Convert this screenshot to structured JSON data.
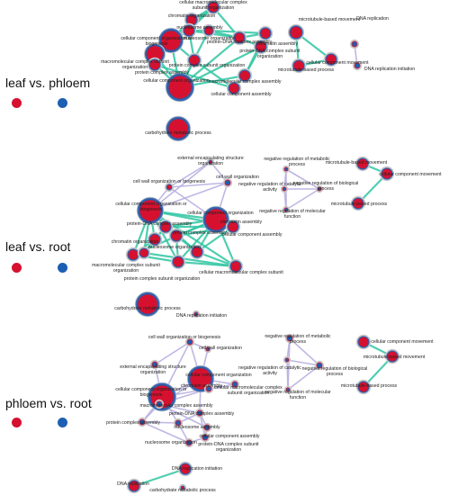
{
  "colors": {
    "first": "#d6112f",
    "second": "#1c5fb3",
    "edge_similar": "#2fc6a2",
    "edge_weak": "#b8afe0",
    "node_halo": "#c9c9c9"
  },
  "panels": [
    {
      "label": "leaf vs. phloem",
      "nodes": [
        {
          "text": "cellular macromolecular complex subunit organization",
          "kind": "red"
        },
        {
          "text": "chromatin organization",
          "kind": "red"
        },
        {
          "text": "nucleosome assembly",
          "kind": "red"
        },
        {
          "text": "nucleosome organization",
          "kind": "red"
        },
        {
          "text": "protein-DNA complex assembly",
          "kind": "red"
        },
        {
          "text": "cellular component organization or biogenesis",
          "kind": "red"
        },
        {
          "text": "chromatin assembly",
          "kind": "red"
        },
        {
          "text": "protein-DNA complex subunit organization",
          "kind": "red"
        },
        {
          "text": "macromolecular complex subunit organization",
          "kind": "red"
        },
        {
          "text": "protein complex subunit organization",
          "kind": "red"
        },
        {
          "text": "cellular component organization",
          "kind": "red"
        },
        {
          "text": "macromolecular complex assembly",
          "kind": "red"
        },
        {
          "text": "protein complex assembly",
          "kind": "red"
        },
        {
          "text": "cellular component assembly",
          "kind": "red"
        },
        {
          "text": "microtubule-based movement",
          "kind": "red"
        },
        {
          "text": "cellular component movement",
          "kind": "red"
        },
        {
          "text": "microtubule-based process",
          "kind": "red"
        },
        {
          "text": "DNA replication",
          "kind": "blue"
        },
        {
          "text": "DNA replication initiation",
          "kind": "blue"
        },
        {
          "text": "carbohydrate metabolic process",
          "kind": "red"
        }
      ]
    },
    {
      "label": "leaf vs. root",
      "nodes": [
        {
          "text": "external encapsulating structure organization",
          "kind": "red"
        },
        {
          "text": "cell wall organization",
          "kind": "blue"
        },
        {
          "text": "cell wall organization or biogenesis",
          "kind": "red"
        },
        {
          "text": "cellular component organization or biogenesis",
          "kind": "red"
        },
        {
          "text": "cellular component organization",
          "kind": "red"
        },
        {
          "text": "protein-DNA complex assembly",
          "kind": "red"
        },
        {
          "text": "chromatin assembly",
          "kind": "red"
        },
        {
          "text": "protein complex assembly",
          "kind": "red"
        },
        {
          "text": "chromatin organization",
          "kind": "red"
        },
        {
          "text": "cellular component assembly",
          "kind": "red"
        },
        {
          "text": "macromolecular complex subunit organization",
          "kind": "red"
        },
        {
          "text": "protein complex subunit organization",
          "kind": "red"
        },
        {
          "text": "nucleosome organization",
          "kind": "red"
        },
        {
          "text": "cellular macromolecular complex subunit",
          "kind": "red"
        },
        {
          "text": "negative regulation of metabolic process",
          "kind": "blue"
        },
        {
          "text": "negative regulation of catalytic activity",
          "kind": "blue"
        },
        {
          "text": "negative regulation of biological process",
          "kind": "blue"
        },
        {
          "text": "negative regulation of molecular function",
          "kind": "blue"
        },
        {
          "text": "microtubule-based movement",
          "kind": "red"
        },
        {
          "text": "cellular component movement",
          "kind": "red"
        },
        {
          "text": "microtubule-based process",
          "kind": "red"
        },
        {
          "text": "carbohydrate metabolic process",
          "kind": "red"
        },
        {
          "text": "DNA replication initiation",
          "kind": "blue"
        }
      ]
    },
    {
      "label": "phloem vs. root",
      "nodes": [
        {
          "text": "cell wall organization or biogenesis",
          "kind": "blue"
        },
        {
          "text": "cell wall organization",
          "kind": "blue"
        },
        {
          "text": "external encapsulating structure organization",
          "kind": "blue"
        },
        {
          "text": "cellular component organization",
          "kind": "red"
        },
        {
          "text": "cellular component organization or biogenesis",
          "kind": "red"
        },
        {
          "text": "cellular macromolecular complex subunit organization",
          "kind": "blue"
        },
        {
          "text": "chromatin assembly",
          "kind": "blue"
        },
        {
          "text": "macromolecular complex assembly",
          "kind": "blue"
        },
        {
          "text": "protein-DNA complex assembly",
          "kind": "blue"
        },
        {
          "text": "cellular component assembly",
          "kind": "blue"
        },
        {
          "text": "protein complex assembly",
          "kind": "blue"
        },
        {
          "text": "nucleosome assembly",
          "kind": "blue"
        },
        {
          "text": "protein-DNA complex subunit organization",
          "kind": "blue"
        },
        {
          "text": "nucleosome organization",
          "kind": "blue"
        },
        {
          "text": "negative regulation of metabolic process",
          "kind": "blue"
        },
        {
          "text": "negative regulation of catalytic activity",
          "kind": "blue"
        },
        {
          "text": "negative regulation of biological process",
          "kind": "blue"
        },
        {
          "text": "negative regulation of molecular function",
          "kind": "blue"
        },
        {
          "text": "cellular component movement",
          "kind": "red"
        },
        {
          "text": "microtubule-based movement",
          "kind": "red"
        },
        {
          "text": "microtubule-based process",
          "kind": "red"
        },
        {
          "text": "DNA replication initiation",
          "kind": "red"
        },
        {
          "text": "DNA replication",
          "kind": "red"
        },
        {
          "text": "carbohydrate metabolic process",
          "kind": "red"
        }
      ]
    }
  ]
}
